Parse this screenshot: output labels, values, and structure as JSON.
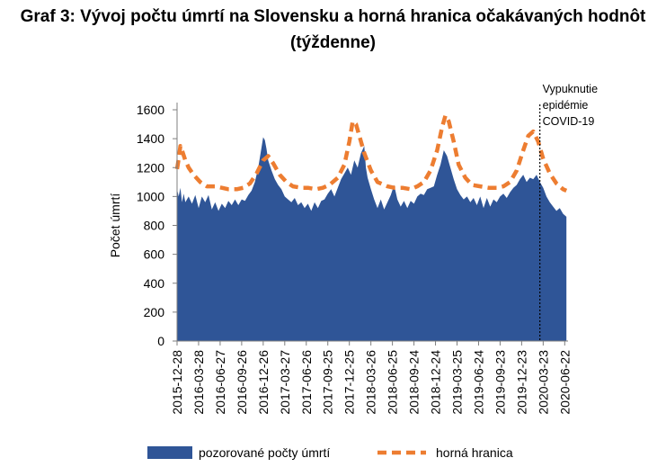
{
  "title": {
    "line1": "Graf 3: Vývoj počtu úmrtí na Slovensku a horná hranica očakávaných hodnôt",
    "line2": "(týždenne)"
  },
  "colors": {
    "area": "#2f5597",
    "threshold": "#ed7d31",
    "axis": "#7f7f7f",
    "marker": "#000000"
  },
  "chart_data": {
    "type": "area",
    "ylabel": "Počet úmrtí",
    "ylim": [
      0,
      1600
    ],
    "yticks": [
      0,
      200,
      400,
      600,
      800,
      1000,
      1200,
      1400,
      1600
    ],
    "grid": false,
    "x_range": [
      "2015-12-28",
      "2020-07-06"
    ],
    "x_tick_labels": [
      "2015-12-28",
      "2016-03-28",
      "2016-06-27",
      "2016-09-26",
      "2016-12-26",
      "2017-03-27",
      "2017-06-26",
      "2017-09-25",
      "2017-12-25",
      "2018-03-26",
      "2018-06-25",
      "2018-09-24",
      "2018-12-24",
      "2019-03-25",
      "2019-06-24",
      "2019-09-23",
      "2019-12-23",
      "2020-03-23",
      "2020-06-22"
    ],
    "annotation": {
      "lines": [
        "Vypuknutie",
        "epidémie",
        "COVID-19"
      ],
      "x": "2020-03-09"
    },
    "legend": {
      "position": "bottom"
    },
    "series": [
      {
        "name": "pozorované počty úmrtí",
        "kind": "area",
        "points": [
          [
            "2015-12-28",
            1050
          ],
          [
            "2016-01-04",
            1000
          ],
          [
            "2016-01-11",
            1060
          ],
          [
            "2016-01-18",
            960
          ],
          [
            "2016-01-25",
            1020
          ],
          [
            "2016-02-01",
            960
          ],
          [
            "2016-02-15",
            1000
          ],
          [
            "2016-02-29",
            950
          ],
          [
            "2016-03-14",
            1010
          ],
          [
            "2016-03-28",
            920
          ],
          [
            "2016-04-11",
            1000
          ],
          [
            "2016-04-25",
            960
          ],
          [
            "2016-05-09",
            1010
          ],
          [
            "2016-05-23",
            910
          ],
          [
            "2016-06-06",
            960
          ],
          [
            "2016-06-20",
            900
          ],
          [
            "2016-07-04",
            950
          ],
          [
            "2016-07-18",
            920
          ],
          [
            "2016-08-01",
            970
          ],
          [
            "2016-08-15",
            940
          ],
          [
            "2016-08-29",
            980
          ],
          [
            "2016-09-12",
            940
          ],
          [
            "2016-09-26",
            980
          ],
          [
            "2016-10-10",
            970
          ],
          [
            "2016-10-24",
            1010
          ],
          [
            "2016-11-07",
            1040
          ],
          [
            "2016-11-21",
            1100
          ],
          [
            "2016-12-05",
            1200
          ],
          [
            "2016-12-19",
            1340
          ],
          [
            "2016-12-26",
            1410
          ],
          [
            "2017-01-02",
            1390
          ],
          [
            "2017-01-09",
            1330
          ],
          [
            "2017-01-16",
            1250
          ],
          [
            "2017-01-30",
            1180
          ],
          [
            "2017-02-13",
            1120
          ],
          [
            "2017-02-27",
            1080
          ],
          [
            "2017-03-13",
            1050
          ],
          [
            "2017-03-27",
            1000
          ],
          [
            "2017-04-10",
            980
          ],
          [
            "2017-04-24",
            960
          ],
          [
            "2017-05-08",
            990
          ],
          [
            "2017-05-22",
            940
          ],
          [
            "2017-06-05",
            960
          ],
          [
            "2017-06-19",
            920
          ],
          [
            "2017-07-03",
            950
          ],
          [
            "2017-07-17",
            900
          ],
          [
            "2017-07-31",
            960
          ],
          [
            "2017-08-14",
            920
          ],
          [
            "2017-08-28",
            970
          ],
          [
            "2017-09-11",
            980
          ],
          [
            "2017-09-25",
            1020
          ],
          [
            "2017-10-09",
            1050
          ],
          [
            "2017-10-23",
            1000
          ],
          [
            "2017-11-06",
            1060
          ],
          [
            "2017-11-20",
            1120
          ],
          [
            "2017-12-04",
            1160
          ],
          [
            "2017-12-18",
            1200
          ],
          [
            "2018-01-01",
            1150
          ],
          [
            "2018-01-15",
            1250
          ],
          [
            "2018-01-29",
            1200
          ],
          [
            "2018-02-12",
            1300
          ],
          [
            "2018-02-26",
            1350
          ],
          [
            "2018-03-05",
            1200
          ],
          [
            "2018-03-12",
            1130
          ],
          [
            "2018-03-26",
            1050
          ],
          [
            "2018-04-09",
            980
          ],
          [
            "2018-04-23",
            920
          ],
          [
            "2018-05-07",
            980
          ],
          [
            "2018-05-21",
            910
          ],
          [
            "2018-06-04",
            960
          ],
          [
            "2018-06-18",
            1010
          ],
          [
            "2018-07-02",
            1080
          ],
          [
            "2018-07-16",
            980
          ],
          [
            "2018-07-30",
            930
          ],
          [
            "2018-08-13",
            970
          ],
          [
            "2018-08-27",
            920
          ],
          [
            "2018-09-10",
            970
          ],
          [
            "2018-09-24",
            950
          ],
          [
            "2018-10-08",
            1000
          ],
          [
            "2018-10-22",
            1020
          ],
          [
            "2018-11-05",
            1010
          ],
          [
            "2018-11-19",
            1050
          ],
          [
            "2018-12-03",
            1060
          ],
          [
            "2018-12-17",
            1070
          ],
          [
            "2018-12-31",
            1150
          ],
          [
            "2019-01-14",
            1220
          ],
          [
            "2019-01-28",
            1320
          ],
          [
            "2019-02-11",
            1280
          ],
          [
            "2019-02-25",
            1200
          ],
          [
            "2019-03-11",
            1120
          ],
          [
            "2019-03-25",
            1050
          ],
          [
            "2019-04-08",
            1010
          ],
          [
            "2019-04-22",
            980
          ],
          [
            "2019-05-06",
            1000
          ],
          [
            "2019-05-20",
            960
          ],
          [
            "2019-06-03",
            990
          ],
          [
            "2019-06-17",
            940
          ],
          [
            "2019-07-01",
            1000
          ],
          [
            "2019-07-15",
            920
          ],
          [
            "2019-07-29",
            990
          ],
          [
            "2019-08-12",
            930
          ],
          [
            "2019-08-26",
            980
          ],
          [
            "2019-09-09",
            960
          ],
          [
            "2019-09-23",
            1000
          ],
          [
            "2019-10-07",
            1020
          ],
          [
            "2019-10-21",
            990
          ],
          [
            "2019-11-04",
            1030
          ],
          [
            "2019-11-18",
            1060
          ],
          [
            "2019-12-02",
            1080
          ],
          [
            "2019-12-16",
            1120
          ],
          [
            "2019-12-30",
            1150
          ],
          [
            "2020-01-13",
            1100
          ],
          [
            "2020-01-27",
            1130
          ],
          [
            "2020-02-10",
            1120
          ],
          [
            "2020-02-24",
            1150
          ],
          [
            "2020-03-09",
            1100
          ],
          [
            "2020-03-23",
            1060
          ],
          [
            "2020-04-06",
            1000
          ],
          [
            "2020-04-20",
            960
          ],
          [
            "2020-05-04",
            930
          ],
          [
            "2020-05-18",
            900
          ],
          [
            "2020-06-01",
            920
          ],
          [
            "2020-06-15",
            880
          ],
          [
            "2020-06-29",
            860
          ]
        ]
      },
      {
        "name": "horná hranica",
        "kind": "line",
        "dashed": true,
        "points": [
          [
            "2015-12-28",
            1190
          ],
          [
            "2016-01-04",
            1260
          ],
          [
            "2016-01-11",
            1350
          ],
          [
            "2016-01-18",
            1320
          ],
          [
            "2016-02-01",
            1250
          ],
          [
            "2016-02-15",
            1200
          ],
          [
            "2016-03-07",
            1150
          ],
          [
            "2016-04-04",
            1100
          ],
          [
            "2016-05-02",
            1070
          ],
          [
            "2016-06-06",
            1070
          ],
          [
            "2016-07-04",
            1060
          ],
          [
            "2016-08-01",
            1050
          ],
          [
            "2016-09-05",
            1050
          ],
          [
            "2016-10-03",
            1060
          ],
          [
            "2016-10-31",
            1090
          ],
          [
            "2016-11-28",
            1160
          ],
          [
            "2016-12-26",
            1250
          ],
          [
            "2017-01-16",
            1280
          ],
          [
            "2017-02-06",
            1230
          ],
          [
            "2017-03-06",
            1150
          ],
          [
            "2017-04-03",
            1100
          ],
          [
            "2017-05-01",
            1070
          ],
          [
            "2017-06-05",
            1060
          ],
          [
            "2017-07-03",
            1060
          ],
          [
            "2017-08-07",
            1050
          ],
          [
            "2017-09-04",
            1060
          ],
          [
            "2017-10-02",
            1080
          ],
          [
            "2017-11-06",
            1130
          ],
          [
            "2017-12-04",
            1220
          ],
          [
            "2017-12-25",
            1380
          ],
          [
            "2018-01-08",
            1520
          ],
          [
            "2018-01-22",
            1500
          ],
          [
            "2018-02-05",
            1420
          ],
          [
            "2018-02-26",
            1300
          ],
          [
            "2018-03-26",
            1180
          ],
          [
            "2018-04-23",
            1100
          ],
          [
            "2018-06-04",
            1070
          ],
          [
            "2018-07-02",
            1060
          ],
          [
            "2018-08-06",
            1060
          ],
          [
            "2018-09-10",
            1050
          ],
          [
            "2018-10-08",
            1070
          ],
          [
            "2018-11-05",
            1100
          ],
          [
            "2018-12-03",
            1180
          ],
          [
            "2018-12-31",
            1320
          ],
          [
            "2019-01-21",
            1480
          ],
          [
            "2019-02-04",
            1560
          ],
          [
            "2019-02-18",
            1520
          ],
          [
            "2019-03-11",
            1380
          ],
          [
            "2019-04-01",
            1220
          ],
          [
            "2019-04-29",
            1130
          ],
          [
            "2019-05-27",
            1080
          ],
          [
            "2019-07-01",
            1070
          ],
          [
            "2019-08-05",
            1060
          ],
          [
            "2019-09-09",
            1060
          ],
          [
            "2019-10-07",
            1070
          ],
          [
            "2019-11-04",
            1100
          ],
          [
            "2019-12-02",
            1180
          ],
          [
            "2019-12-30",
            1320
          ],
          [
            "2020-01-20",
            1420
          ],
          [
            "2020-02-10",
            1450
          ],
          [
            "2020-03-02",
            1380
          ],
          [
            "2020-03-23",
            1260
          ],
          [
            "2020-04-20",
            1160
          ],
          [
            "2020-05-18",
            1090
          ],
          [
            "2020-06-15",
            1050
          ],
          [
            "2020-06-29",
            1040
          ]
        ]
      }
    ]
  }
}
